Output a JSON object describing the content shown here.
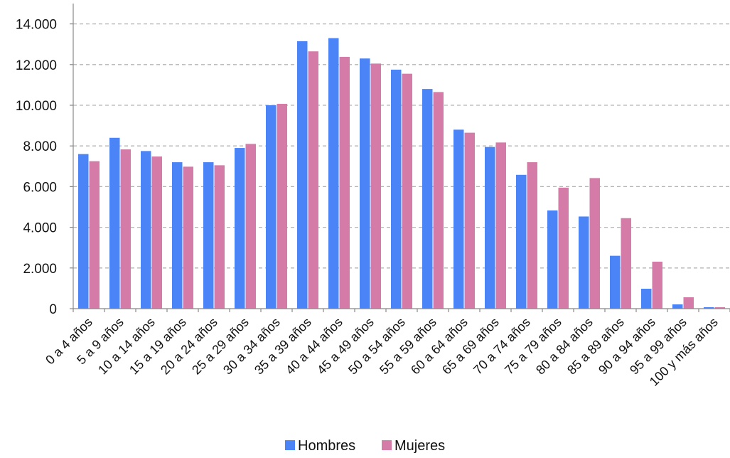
{
  "chart_data": {
    "type": "bar",
    "title": "",
    "xlabel": "",
    "ylabel": "",
    "ylim": [
      0,
      15000
    ],
    "yticks": [
      "0",
      "2.000",
      "4.000",
      "6.000",
      "8.000",
      "10.000",
      "12.000",
      "14.000"
    ],
    "ytick_values": [
      0,
      2000,
      4000,
      6000,
      8000,
      10000,
      12000,
      14000
    ],
    "grid": true,
    "legend_position": "bottom-center",
    "categories": [
      "0 a 4 años",
      "5 a 9 años",
      "10 a 14 años",
      "15 a 19 años",
      "20 a 24 años",
      "25 a 29 años",
      "30 a 34 años",
      "35 a 39 años",
      "40 a 44 años",
      "45 a 49 años",
      "50 a 54 años",
      "55 a 59 años",
      "60 a 64 años",
      "65 a 69 años",
      "70 a 74 años",
      "75 a 79 años",
      "80 a 84 años",
      "85 a 89 años",
      "90 a 94 años",
      "95 a 99 años",
      "100 y más años"
    ],
    "series": [
      {
        "name": "Hombres",
        "color": "#4a84f7",
        "values": [
          7600,
          8400,
          7750,
          7200,
          7200,
          7900,
          10000,
          13150,
          13300,
          12300,
          11750,
          10800,
          8800,
          7950,
          6580,
          4830,
          4530,
          2600,
          980,
          210,
          70
        ]
      },
      {
        "name": "Mujeres",
        "color": "#d47ba8",
        "values": [
          7250,
          7830,
          7480,
          6980,
          7050,
          8100,
          10070,
          12650,
          12380,
          12050,
          11550,
          10650,
          8650,
          8170,
          7200,
          5950,
          6420,
          4450,
          2310,
          560,
          70
        ]
      }
    ]
  }
}
